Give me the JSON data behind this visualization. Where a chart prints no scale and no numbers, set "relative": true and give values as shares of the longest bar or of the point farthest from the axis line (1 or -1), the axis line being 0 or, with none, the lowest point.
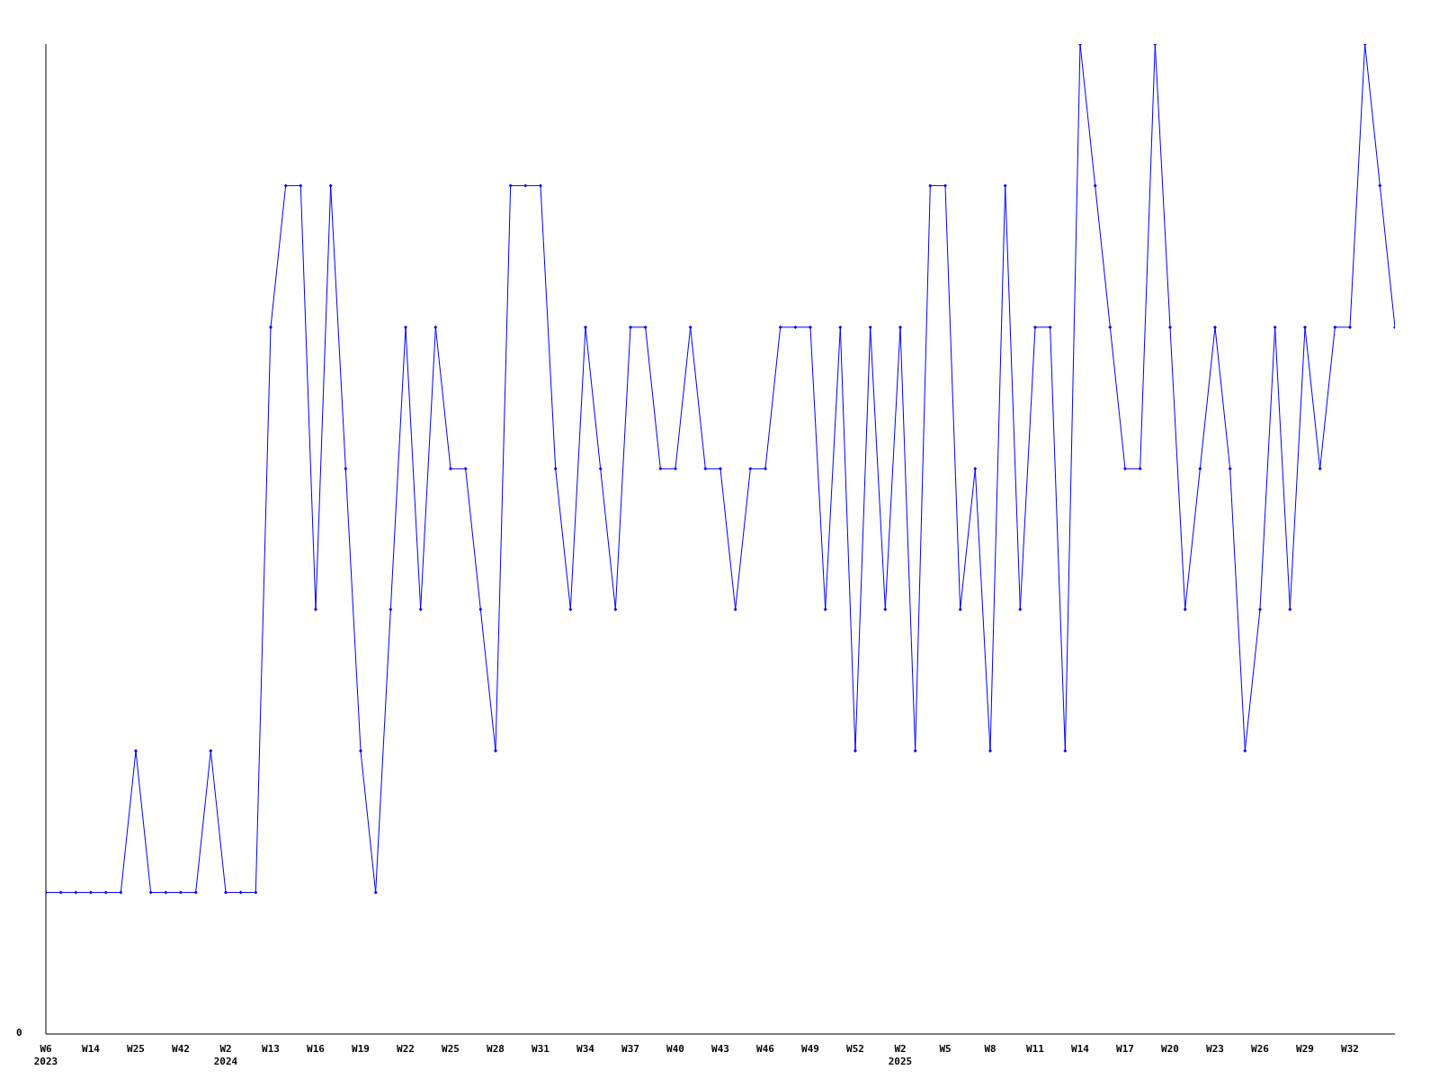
{
  "chart_data": {
    "type": "line",
    "relative": true,
    "marker": "diamond",
    "grid": false,
    "legend": false,
    "annotations": [
      "0"
    ],
    "categories": [
      "W6\n2023",
      null,
      null,
      "W14",
      null,
      null,
      "W25",
      null,
      null,
      "W42",
      null,
      null,
      "W2\n2024",
      null,
      null,
      "W13",
      null,
      null,
      "W16",
      null,
      null,
      "W19",
      null,
      null,
      "W22",
      null,
      null,
      "W25",
      null,
      null,
      "W28",
      null,
      null,
      "W31",
      null,
      null,
      "W34",
      null,
      null,
      "W37",
      null,
      null,
      "W40",
      null,
      null,
      "W43",
      null,
      null,
      "W46",
      null,
      null,
      "W49",
      null,
      null,
      "W52",
      null,
      null,
      "W2\n2025",
      null,
      null,
      "W5",
      null,
      null,
      "W8",
      null,
      null,
      "W11",
      null,
      null,
      "W14",
      null,
      null,
      "W17",
      null,
      null,
      "W20",
      null,
      null,
      "W23",
      null,
      null,
      "W26",
      null,
      null,
      "W29",
      null,
      null,
      "W32",
      null,
      null,
      null
    ],
    "series": [
      {
        "color": "#0000ff",
        "values": [
          0.143,
          0.143,
          0.143,
          0.143,
          0.143,
          0.143,
          0.286,
          0.143,
          0.143,
          0.143,
          0.143,
          0.286,
          0.143,
          0.143,
          0.143,
          0.714,
          0.857,
          0.857,
          0.429,
          0.857,
          0.571,
          0.286,
          0.143,
          0.429,
          0.714,
          0.429,
          0.714,
          0.571,
          0.571,
          0.429,
          0.286,
          0.857,
          0.857,
          0.857,
          0.571,
          0.429,
          0.714,
          0.571,
          0.429,
          0.714,
          0.714,
          0.571,
          0.571,
          0.714,
          0.571,
          0.571,
          0.429,
          0.571,
          0.571,
          0.714,
          0.714,
          0.714,
          0.429,
          0.714,
          0.286,
          0.714,
          0.429,
          0.714,
          0.286,
          0.857,
          0.857,
          0.429,
          0.571,
          0.286,
          0.857,
          0.429,
          0.714,
          0.714,
          0.286,
          1,
          0.857,
          0.714,
          0.571,
          0.571,
          1,
          0.714,
          0.429,
          0.571,
          0.714,
          0.571,
          0.286,
          0.429,
          0.714,
          0.429,
          0.714,
          0.571,
          0.714,
          0.714,
          1,
          0.857,
          0.714
        ]
      }
    ]
  }
}
